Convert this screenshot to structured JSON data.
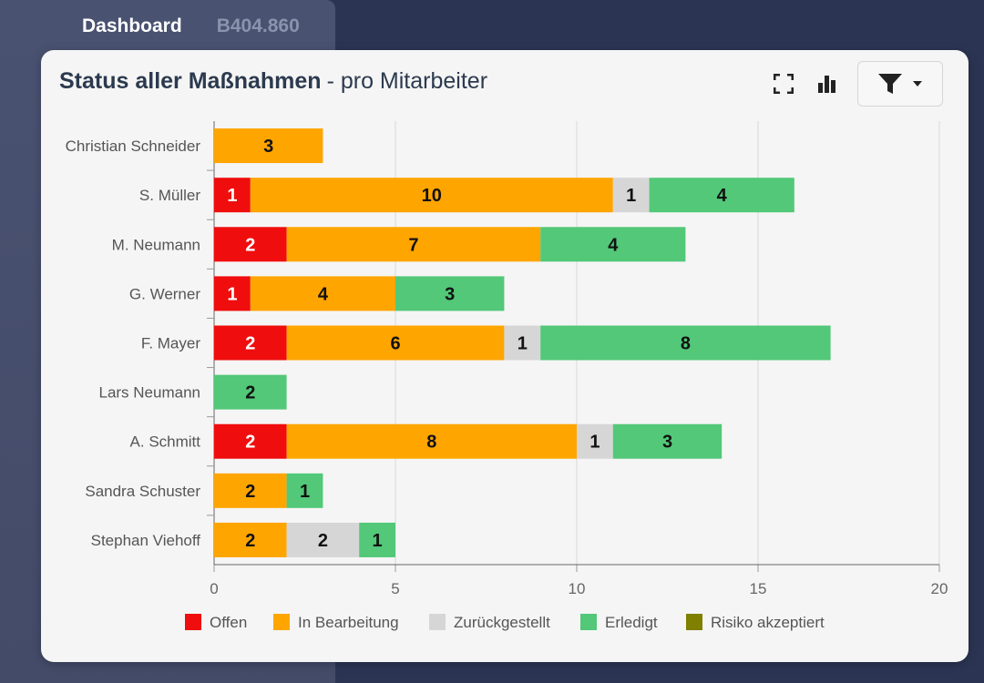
{
  "nav": {
    "active_tab": "Dashboard",
    "muted_tab": "B404.860"
  },
  "card": {
    "title": "Status aller Maßnahmen",
    "subtitle": "- pro Mitarbeiter"
  },
  "icons": [
    "fullscreen-icon",
    "bar-chart-icon",
    "filter-icon",
    "caret-down-icon"
  ],
  "colors": {
    "offen": "#f00d0d",
    "in_bearbeitung": "#ffa500",
    "zurueckgestellt": "#d6d6d6",
    "erledigt": "#52c878",
    "risiko": "#7f7f00"
  },
  "chart_data": {
    "type": "bar",
    "orientation": "horizontal",
    "stacked": true,
    "categories": [
      "Christian Schneider",
      "S. Müller",
      "M. Neumann",
      "G. Werner",
      "F. Mayer",
      "Lars Neumann",
      "A. Schmitt",
      "Sandra Schuster",
      "Stephan Viehoff"
    ],
    "series": [
      {
        "name": "Offen",
        "color": "#f00d0d",
        "values": [
          0,
          1,
          2,
          1,
          2,
          0,
          2,
          0,
          0
        ]
      },
      {
        "name": "In Bearbeitung",
        "color": "#ffa500",
        "values": [
          3,
          10,
          7,
          4,
          6,
          0,
          8,
          2,
          2
        ]
      },
      {
        "name": "Zurückgestellt",
        "color": "#d6d6d6",
        "values": [
          0,
          1,
          0,
          0,
          1,
          0,
          1,
          0,
          2
        ]
      },
      {
        "name": "Erledigt",
        "color": "#52c878",
        "values": [
          0,
          4,
          4,
          3,
          8,
          2,
          3,
          1,
          1
        ]
      },
      {
        "name": "Risiko akzeptiert",
        "color": "#7f7f00",
        "values": [
          0,
          0,
          0,
          0,
          0,
          0,
          0,
          0,
          0
        ]
      }
    ],
    "xlim": [
      0,
      20
    ],
    "xticks": [
      "0",
      "5",
      "10",
      "15",
      "20"
    ],
    "grid": true,
    "legend_position": "bottom"
  }
}
